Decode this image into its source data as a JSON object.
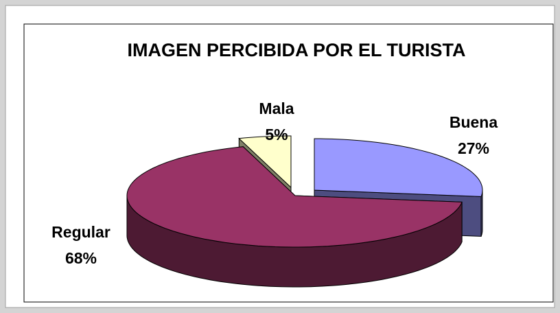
{
  "chart_data": {
    "type": "pie",
    "title": "IMAGEN PERCIBIDA POR EL TURISTA",
    "categories": [
      "Buena",
      "Regular",
      "Mala"
    ],
    "values": [
      27,
      68,
      5
    ],
    "value_labels": [
      "27%",
      "68%",
      "5%"
    ],
    "colors": [
      "#9999ff",
      "#993366",
      "#ffffcc"
    ],
    "three_d": true,
    "exploded": true
  }
}
